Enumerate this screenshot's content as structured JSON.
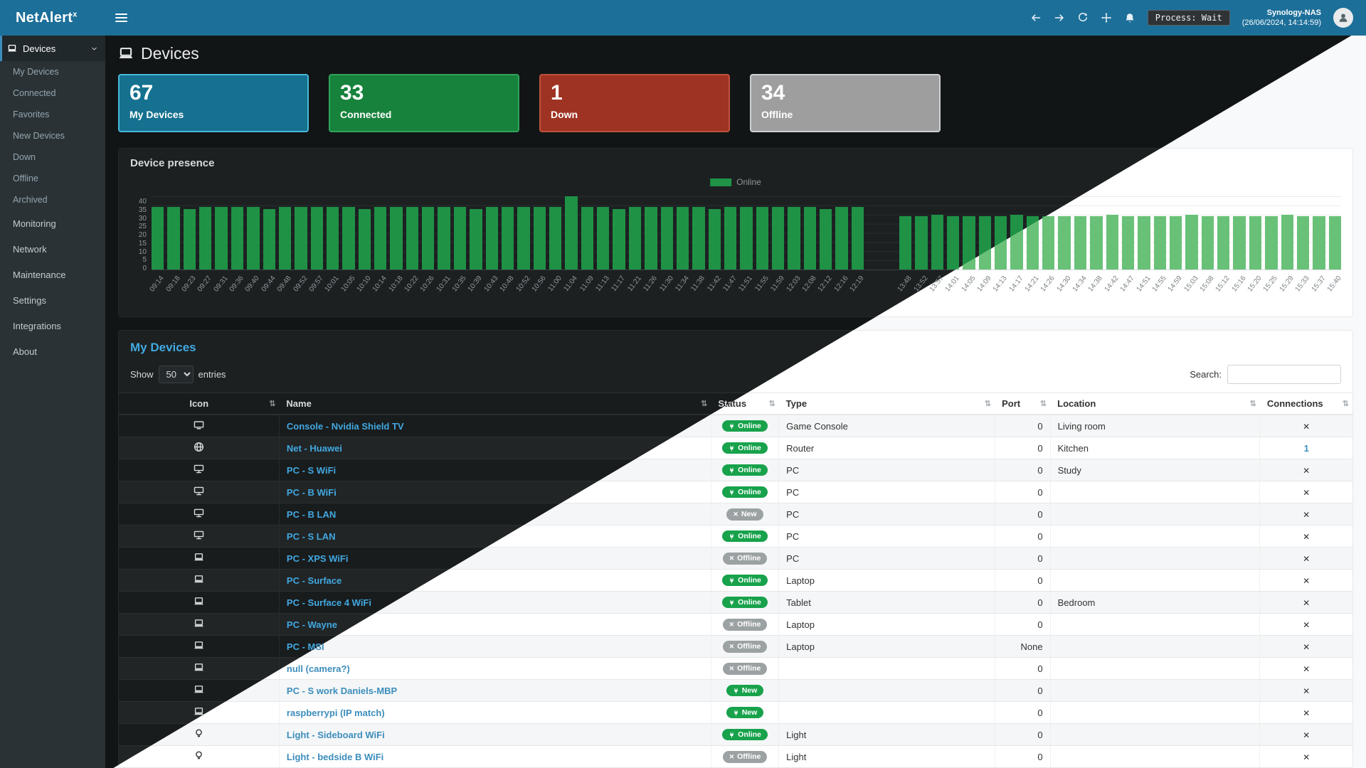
{
  "app": {
    "brand": "NetAlert",
    "brand_sup": "x"
  },
  "page": {
    "title": "Devices"
  },
  "navbar": {
    "process_label": "Process: Wait",
    "host": "Synology-NAS",
    "timestamp": "(26/06/2024, 14:14:59)"
  },
  "colors": {
    "navbar": "#1c6f99",
    "sidebar": "#2a3236",
    "online_badge": "#17a24b",
    "offline_badge": "#9ca1a3",
    "chart_bar_dark": "#1f9246",
    "chart_bar_light": "#69c178",
    "link_dark": "#41a8e0",
    "link_light": "#3c8dbc"
  },
  "sidebar": {
    "devices": {
      "label": "Devices",
      "icon": "laptop",
      "children": [
        "My Devices",
        "Connected",
        "Favorites",
        "New Devices",
        "Down",
        "Offline",
        "Archived"
      ]
    },
    "items": [
      {
        "label": "Monitoring",
        "icon": "chart",
        "chevron": true
      },
      {
        "label": "Network",
        "icon": "network",
        "chevron": false
      },
      {
        "label": "Maintenance",
        "icon": "wrench",
        "chevron": true
      },
      {
        "label": "Settings",
        "icon": "gear",
        "chevron": true
      },
      {
        "label": "Integrations",
        "icon": "plug",
        "chevron": true
      },
      {
        "label": "About",
        "icon": "info",
        "chevron": true
      }
    ]
  },
  "cards": [
    {
      "value": "67",
      "label": "My Devices",
      "icon": "laptop",
      "color": "#15718f",
      "border": "#49b8d8"
    },
    {
      "value": "33",
      "label": "Connected",
      "icon": "plug",
      "color": "#17823c",
      "border": "#2fa35b"
    },
    {
      "value": "1",
      "label": "Down",
      "icon": "warning",
      "color": "#9e3323",
      "border": "#c0523c"
    },
    {
      "value": "34",
      "label": "Offline",
      "icon": "xmark",
      "color": "#9e9e9e",
      "border": "#cdd0d2"
    }
  ],
  "chart_data": {
    "type": "bar",
    "title": "Device presence",
    "legend": [
      "Online"
    ],
    "legend_position": "top-center",
    "grid": true,
    "ylim": [
      0,
      40
    ],
    "yticks": [
      40,
      35,
      30,
      25,
      20,
      15,
      10,
      5,
      0
    ],
    "x": [
      "09:14",
      "09:18",
      "09:23",
      "09:27",
      "09:31",
      "09:36",
      "09:40",
      "09:44",
      "09:48",
      "09:52",
      "09:57",
      "10:01",
      "10:05",
      "10:10",
      "10:14",
      "10:18",
      "10:22",
      "10:26",
      "10:31",
      "10:35",
      "10:39",
      "10:43",
      "10:48",
      "10:52",
      "10:56",
      "11:00",
      "11:04",
      "11:09",
      "11:13",
      "11:17",
      "11:21",
      "11:26",
      "11:30",
      "11:34",
      "11:38",
      "11:42",
      "11:47",
      "11:51",
      "11:55",
      "11:59",
      "12:03",
      "12:08",
      "12:12",
      "12:16",
      "12:19",
      "",
      "",
      "13:48",
      "13:52",
      "13:57",
      "14:01",
      "14:05",
      "14:09",
      "14:13",
      "14:17",
      "14:21",
      "14:26",
      "14:30",
      "14:34",
      "14:38",
      "14:42",
      "14:47",
      "14:51",
      "14:55",
      "14:59",
      "15:03",
      "15:08",
      "15:12",
      "15:16",
      "15:20",
      "15:25",
      "15:29",
      "15:33",
      "15:37",
      "15:40"
    ],
    "values": [
      34,
      34,
      33,
      34,
      34,
      34,
      34,
      33,
      34,
      34,
      34,
      34,
      34,
      33,
      34,
      34,
      34,
      34,
      34,
      34,
      33,
      34,
      34,
      34,
      34,
      34,
      40,
      34,
      34,
      33,
      34,
      34,
      34,
      34,
      34,
      33,
      34,
      34,
      34,
      34,
      34,
      34,
      33,
      34,
      34,
      null,
      null,
      29,
      29,
      30,
      29,
      29,
      29,
      29,
      30,
      29,
      29,
      29,
      29,
      29,
      30,
      29,
      29,
      29,
      29,
      30,
      29,
      29,
      29,
      29,
      29,
      30,
      29,
      29,
      29
    ]
  },
  "table": {
    "title": "My Devices",
    "show_label": "Show",
    "page_size": "50",
    "entries_label": "entries",
    "search_label": "Search:",
    "sort_glyph": "⇅",
    "columns": [
      "Icon",
      "Name",
      "Status",
      "Type",
      "Port",
      "Location",
      "Connections"
    ],
    "rows": [
      {
        "icon": "tv",
        "name": "Console - Nvidia Shield TV",
        "status": "Online",
        "status_kind": "online",
        "type": "Game Console",
        "port": "0",
        "location": "Living room",
        "connections": "✕"
      },
      {
        "icon": "globe",
        "name": "Net - Huawei",
        "status": "Online",
        "status_kind": "online",
        "type": "Router",
        "port": "0",
        "location": "Kitchen",
        "connections": "1"
      },
      {
        "icon": "desktop",
        "name": "PC - S WiFi",
        "status": "Online",
        "status_kind": "online",
        "type": "PC",
        "port": "0",
        "location": "Study",
        "connections": "✕"
      },
      {
        "icon": "desktop",
        "name": "PC - B WiFi",
        "status": "Online",
        "status_kind": "online",
        "type": "PC",
        "port": "0",
        "location": "",
        "connections": "✕"
      },
      {
        "icon": "desktop",
        "name": "PC - B LAN",
        "status": "New",
        "status_kind": "new-grey",
        "type": "PC",
        "port": "0",
        "location": "",
        "connections": "✕"
      },
      {
        "icon": "desktop",
        "name": "PC - S LAN",
        "status": "Online",
        "status_kind": "online",
        "type": "PC",
        "port": "0",
        "location": "",
        "connections": "✕"
      },
      {
        "icon": "laptop",
        "name": "PC - XPS WiFi",
        "status": "Offline",
        "status_kind": "offline",
        "type": "PC",
        "port": "0",
        "location": "",
        "connections": "✕"
      },
      {
        "icon": "laptop",
        "name": "PC - Surface",
        "status": "Online",
        "status_kind": "online",
        "type": "Laptop",
        "port": "0",
        "location": "",
        "connections": "✕"
      },
      {
        "icon": "laptop",
        "name": "PC - Surface 4 WiFi",
        "status": "Online",
        "status_kind": "online",
        "type": "Tablet",
        "port": "0",
        "location": "Bedroom",
        "connections": "✕"
      },
      {
        "icon": "laptop",
        "name": "PC - Wayne",
        "status": "Offline",
        "status_kind": "offline",
        "type": "Laptop",
        "port": "0",
        "location": "",
        "connections": "✕"
      },
      {
        "icon": "laptop",
        "name": "PC - MSI",
        "status": "Offline",
        "status_kind": "offline",
        "type": "Laptop",
        "port": "None",
        "location": "",
        "connections": "✕"
      },
      {
        "icon": "laptop",
        "name": "null (camera?)",
        "status": "Offline",
        "status_kind": "offline",
        "type": "",
        "port": "0",
        "location": "",
        "connections": "✕"
      },
      {
        "icon": "laptop",
        "name": "PC - S work Daniels-MBP",
        "status": "New",
        "status_kind": "new-green",
        "type": "",
        "port": "0",
        "location": "",
        "connections": "✕"
      },
      {
        "icon": "laptop",
        "name": "raspberrypi (IP match)",
        "status": "New",
        "status_kind": "new-green",
        "type": "",
        "port": "0",
        "location": "",
        "connections": "✕"
      },
      {
        "icon": "bulb",
        "name": "Light - Sideboard WiFi",
        "status": "Online",
        "status_kind": "online",
        "type": "Light",
        "port": "0",
        "location": "",
        "connections": "✕"
      },
      {
        "icon": "bulb",
        "name": "Light - bedside B WiFi",
        "status": "Offline",
        "status_kind": "offline",
        "type": "Light",
        "port": "0",
        "location": "",
        "connections": "✕"
      }
    ]
  }
}
